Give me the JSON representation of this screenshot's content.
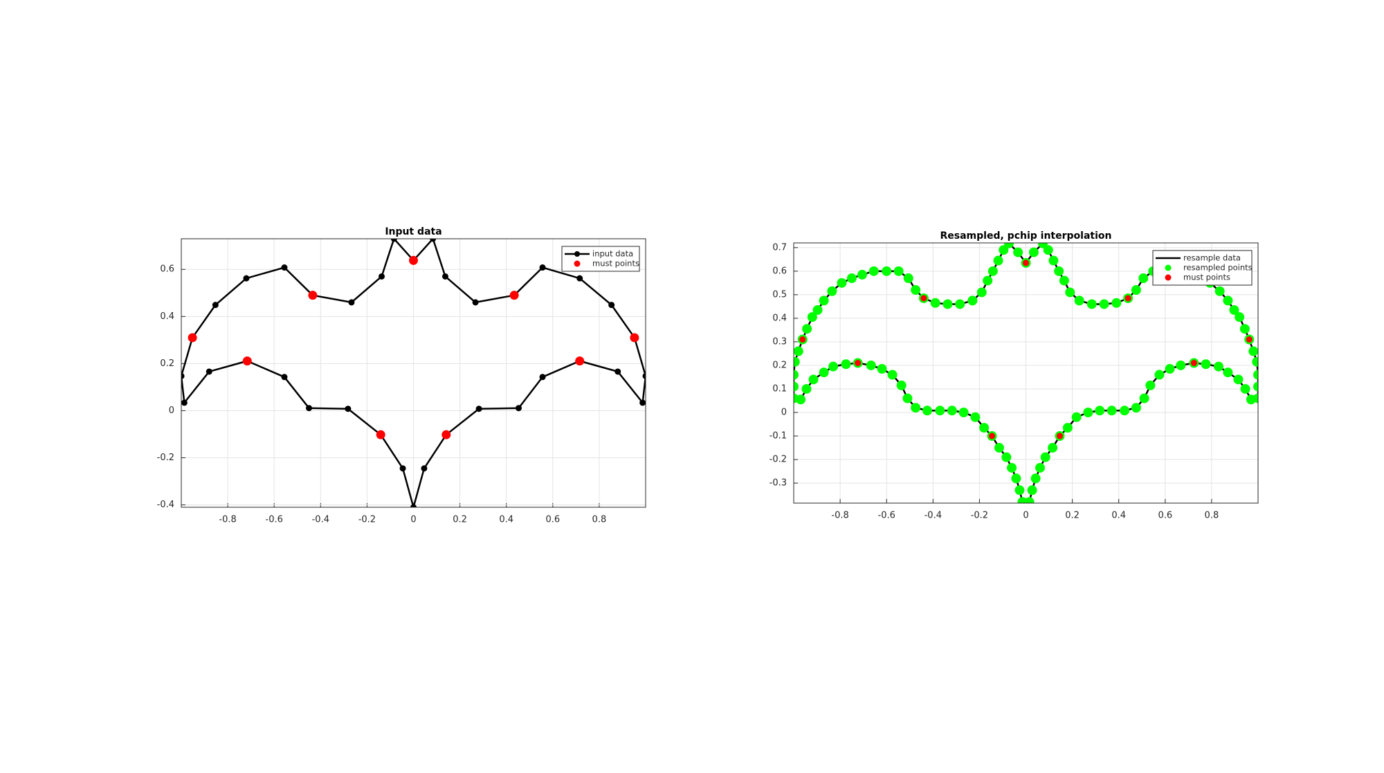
{
  "chart_data": [
    {
      "type": "line",
      "title": "Input data",
      "xlim": [
        -1,
        1
      ],
      "ylim": [
        -0.41,
        0.73
      ],
      "xticks": [
        -0.8,
        -0.6,
        -0.4,
        -0.2,
        0,
        0.2,
        0.4,
        0.6,
        0.8
      ],
      "yticks": [
        -0.4,
        -0.2,
        0,
        0.2,
        0.4,
        0.6
      ],
      "grid": true,
      "legend": "upper right",
      "series": [
        {
          "name": "input data",
          "color": "#000000",
          "style": "line-marker",
          "x": [
            -1.0,
            -0.952,
            -0.853,
            -0.72,
            -0.556,
            -0.434,
            -0.267,
            -0.137,
            -0.084,
            0,
            0.084,
            0.137,
            0.267,
            0.434,
            0.556,
            0.716,
            0.853,
            0.952,
            1.0,
            0.987,
            0.88,
            0.716,
            0.556,
            0.453,
            0.282,
            0.141,
            0.046,
            0,
            -0.046,
            -0.141,
            -0.282,
            -0.45,
            -0.556,
            -0.716,
            -0.88,
            -0.987,
            -1.0
          ],
          "y": [
            0.147,
            0.31,
            0.449,
            0.562,
            0.608,
            0.49,
            0.46,
            0.57,
            0.73,
            0.638,
            0.73,
            0.57,
            0.46,
            0.49,
            0.608,
            0.562,
            0.449,
            0.31,
            0.147,
            0.034,
            0.166,
            0.211,
            0.143,
            0.011,
            0.008,
            -0.102,
            -0.245,
            -0.41,
            -0.245,
            -0.102,
            0.008,
            0.011,
            0.143,
            0.211,
            0.166,
            0.034,
            0.147
          ]
        },
        {
          "name": "must points",
          "color": "#ff0000",
          "style": "marker",
          "x": [
            -0.952,
            -0.434,
            0,
            0.434,
            0.952,
            0.716,
            0.141,
            -0.141,
            -0.716
          ],
          "y": [
            0.31,
            0.49,
            0.638,
            0.49,
            0.31,
            0.211,
            -0.102,
            -0.102,
            0.211
          ]
        }
      ]
    },
    {
      "type": "line",
      "title": "Resampled, pchip interpolation",
      "xlim": [
        -1,
        1
      ],
      "ylim": [
        -0.385,
        0.72
      ],
      "xticks": [
        -0.8,
        -0.6,
        -0.4,
        -0.2,
        0,
        0.2,
        0.4,
        0.6,
        0.8
      ],
      "yticks": [
        -0.3,
        -0.2,
        -0.1,
        0,
        0.1,
        0.2,
        0.3,
        0.4,
        0.5,
        0.6,
        0.7
      ],
      "grid": true,
      "legend": "upper right",
      "series": [
        {
          "name": "resample data",
          "color": "#000000",
          "style": "line",
          "x": [
            -1.0,
            -0.995,
            -0.98,
            -0.962,
            -0.943,
            -0.92,
            -0.897,
            -0.87,
            -0.835,
            -0.793,
            -0.75,
            -0.705,
            -0.655,
            -0.6,
            -0.548,
            -0.506,
            -0.475,
            -0.44,
            -0.39,
            -0.337,
            -0.284,
            -0.23,
            -0.19,
            -0.165,
            -0.142,
            -0.119,
            -0.096,
            -0.073,
            -0.034,
            0,
            0.034,
            0.073,
            0.096,
            0.119,
            0.142,
            0.165,
            0.19,
            0.23,
            0.284,
            0.337,
            0.39,
            0.44,
            0.475,
            0.506,
            0.548,
            0.6,
            0.655,
            0.705,
            0.75,
            0.793,
            0.835,
            0.87,
            0.897,
            0.92,
            0.943,
            0.962,
            0.98,
            0.995,
            1.0,
            1.0,
            1.0,
            0.97,
            0.945,
            0.915,
            0.87,
            0.83,
            0.775,
            0.724,
            0.667,
            0.62,
            0.575,
            0.536,
            0.51,
            0.475,
            0.425,
            0.37,
            0.318,
            0.268,
            0.218,
            0.18,
            0.146,
            0.115,
            0.084,
            0.061,
            0.042,
            0.027,
            0.015,
            -0.015,
            -0.027,
            -0.042,
            -0.061,
            -0.084,
            -0.115,
            -0.146,
            -0.18,
            -0.218,
            -0.268,
            -0.318,
            -0.37,
            -0.425,
            -0.475,
            -0.51,
            -0.536,
            -0.575,
            -0.62,
            -0.667,
            -0.724,
            -0.775,
            -0.83,
            -0.87,
            -0.915,
            -0.945,
            -0.97,
            -1.0,
            -1.0,
            -1.0
          ],
          "y": [
            0.16,
            0.215,
            0.26,
            0.31,
            0.355,
            0.405,
            0.435,
            0.475,
            0.515,
            0.55,
            0.57,
            0.585,
            0.6,
            0.6,
            0.6,
            0.57,
            0.52,
            0.485,
            0.465,
            0.46,
            0.46,
            0.475,
            0.51,
            0.56,
            0.6,
            0.645,
            0.69,
            0.718,
            0.68,
            0.635,
            0.68,
            0.718,
            0.69,
            0.645,
            0.6,
            0.56,
            0.51,
            0.475,
            0.46,
            0.46,
            0.465,
            0.485,
            0.52,
            0.57,
            0.6,
            0.6,
            0.6,
            0.585,
            0.57,
            0.55,
            0.515,
            0.475,
            0.435,
            0.405,
            0.355,
            0.31,
            0.26,
            0.215,
            0.16,
            0.11,
            0.06,
            0.055,
            0.1,
            0.14,
            0.17,
            0.195,
            0.205,
            0.21,
            0.2,
            0.185,
            0.16,
            0.115,
            0.06,
            0.02,
            0.008,
            0.008,
            0.008,
            0,
            -0.02,
            -0.065,
            -0.1,
            -0.15,
            -0.19,
            -0.235,
            -0.28,
            -0.33,
            -0.38,
            -0.38,
            -0.33,
            -0.28,
            -0.235,
            -0.19,
            -0.15,
            -0.1,
            -0.065,
            -0.02,
            0,
            0.008,
            0.008,
            0.008,
            0.02,
            0.06,
            0.115,
            0.16,
            0.185,
            0.2,
            0.21,
            0.205,
            0.195,
            0.17,
            0.14,
            0.1,
            0.055,
            0.06,
            0.11,
            0.16
          ]
        },
        {
          "name": "resampled points",
          "color": "#00ff00",
          "style": "marker",
          "x": [
            -1.0,
            -0.995,
            -0.98,
            -0.962,
            -0.943,
            -0.92,
            -0.897,
            -0.87,
            -0.835,
            -0.793,
            -0.75,
            -0.705,
            -0.655,
            -0.6,
            -0.548,
            -0.506,
            -0.475,
            -0.44,
            -0.39,
            -0.337,
            -0.284,
            -0.23,
            -0.19,
            -0.165,
            -0.142,
            -0.119,
            -0.096,
            -0.073,
            -0.034,
            0,
            0.034,
            0.073,
            0.096,
            0.119,
            0.142,
            0.165,
            0.19,
            0.23,
            0.284,
            0.337,
            0.39,
            0.44,
            0.475,
            0.506,
            0.548,
            0.6,
            0.655,
            0.705,
            0.75,
            0.793,
            0.835,
            0.87,
            0.897,
            0.92,
            0.943,
            0.962,
            0.98,
            0.995,
            1.0,
            1.0,
            1.0,
            0.97,
            0.945,
            0.915,
            0.87,
            0.83,
            0.775,
            0.724,
            0.667,
            0.62,
            0.575,
            0.536,
            0.51,
            0.475,
            0.425,
            0.37,
            0.318,
            0.268,
            0.218,
            0.18,
            0.146,
            0.115,
            0.084,
            0.061,
            0.042,
            0.027,
            0.015,
            -0.015,
            -0.027,
            -0.042,
            -0.061,
            -0.084,
            -0.115,
            -0.146,
            -0.18,
            -0.218,
            -0.268,
            -0.318,
            -0.37,
            -0.425,
            -0.475,
            -0.51,
            -0.536,
            -0.575,
            -0.62,
            -0.667,
            -0.724,
            -0.775,
            -0.83,
            -0.87,
            -0.915,
            -0.945,
            -0.97,
            -1.0,
            -1.0
          ],
          "y": [
            0.16,
            0.215,
            0.26,
            0.31,
            0.355,
            0.405,
            0.435,
            0.475,
            0.515,
            0.55,
            0.57,
            0.585,
            0.6,
            0.6,
            0.6,
            0.57,
            0.52,
            0.485,
            0.465,
            0.46,
            0.46,
            0.475,
            0.51,
            0.56,
            0.6,
            0.645,
            0.69,
            0.718,
            0.68,
            0.635,
            0.68,
            0.718,
            0.69,
            0.645,
            0.6,
            0.56,
            0.51,
            0.475,
            0.46,
            0.46,
            0.465,
            0.485,
            0.52,
            0.57,
            0.6,
            0.6,
            0.6,
            0.585,
            0.57,
            0.55,
            0.515,
            0.475,
            0.435,
            0.405,
            0.355,
            0.31,
            0.26,
            0.215,
            0.16,
            0.11,
            0.06,
            0.055,
            0.1,
            0.14,
            0.17,
            0.195,
            0.205,
            0.21,
            0.2,
            0.185,
            0.16,
            0.115,
            0.06,
            0.02,
            0.008,
            0.008,
            0.008,
            0,
            -0.02,
            -0.065,
            -0.1,
            -0.15,
            -0.19,
            -0.235,
            -0.28,
            -0.33,
            -0.38,
            -0.38,
            -0.33,
            -0.28,
            -0.235,
            -0.19,
            -0.15,
            -0.1,
            -0.065,
            -0.02,
            0,
            0.008,
            0.008,
            0.008,
            0.02,
            0.06,
            0.115,
            0.16,
            0.185,
            0.2,
            0.21,
            0.205,
            0.195,
            0.17,
            0.14,
            0.1,
            0.055,
            0.06,
            0.11
          ]
        },
        {
          "name": "must points",
          "color": "#ff0000",
          "style": "marker",
          "x": [
            -0.962,
            -0.44,
            0,
            0.44,
            0.962,
            0.724,
            0.146,
            -0.146,
            -0.724
          ],
          "y": [
            0.31,
            0.485,
            0.635,
            0.485,
            0.31,
            0.21,
            -0.1,
            -0.1,
            0.21
          ]
        }
      ]
    }
  ]
}
